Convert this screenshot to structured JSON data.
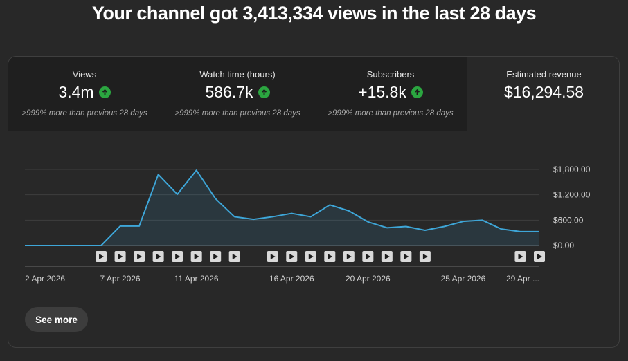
{
  "headline": "Your channel got 3,413,334 views in the last 28 days",
  "metrics": [
    {
      "label": "Views",
      "value": "3.4m",
      "compare": ">999% more than previous 28 days",
      "trend_icon": "arrow-up-circle-icon"
    },
    {
      "label": "Watch time (hours)",
      "value": "586.7k",
      "compare": ">999% more than previous 28 days",
      "trend_icon": "arrow-up-circle-icon"
    },
    {
      "label": "Subscribers",
      "value": "+15.8k",
      "compare": ">999% more than previous 28 days",
      "trend_icon": "arrow-up-circle-icon"
    },
    {
      "label": "Estimated revenue",
      "value": "$16,294.58",
      "selected": true
    }
  ],
  "colors": {
    "line": "#3ea6d8",
    "up": "#2ba640",
    "background": "#282828",
    "tile": "#1f1f1f"
  },
  "chart_data": {
    "type": "area",
    "series": [
      {
        "values": [
          0,
          0,
          0,
          0,
          0,
          460,
          460,
          1680,
          1210,
          1780,
          1110,
          680,
          620,
          680,
          760,
          680,
          960,
          820,
          560,
          420,
          450,
          360,
          450,
          570,
          600,
          390,
          330,
          330
        ]
      }
    ],
    "x": [
      "2 Apr 2026",
      "3 Apr 2026",
      "4 Apr 2026",
      "5 Apr 2026",
      "6 Apr 2026",
      "7 Apr 2026",
      "8 Apr 2026",
      "9 Apr 2026",
      "10 Apr 2026",
      "11 Apr 2026",
      "12 Apr 2026",
      "13 Apr 2026",
      "14 Apr 2026",
      "15 Apr 2026",
      "16 Apr 2026",
      "17 Apr 2026",
      "18 Apr 2026",
      "19 Apr 2026",
      "20 Apr 2026",
      "21 Apr 2026",
      "22 Apr 2026",
      "23 Apr 2026",
      "24 Apr 2026",
      "25 Apr 2026",
      "26 Apr 2026",
      "27 Apr 2026",
      "28 Apr 2026",
      "29 Apr 2026"
    ],
    "x_tick_labels": [
      {
        "index": 0,
        "label": "2 Apr 2026"
      },
      {
        "index": 5,
        "label": "7 Apr 2026"
      },
      {
        "index": 9,
        "label": "11 Apr 2026"
      },
      {
        "index": 14,
        "label": "16 Apr 2026"
      },
      {
        "index": 18,
        "label": "20 Apr 2026"
      },
      {
        "index": 23,
        "label": "25 Apr 2026"
      },
      {
        "index": 27,
        "label": "29 Apr ..."
      }
    ],
    "y_ticks": [
      0,
      600,
      1200,
      1800
    ],
    "y_tick_labels": [
      "$0.00",
      "$600.00",
      "$1,200.00",
      "$1,800.00"
    ],
    "ylim": [
      0,
      1800
    ],
    "grid": true,
    "y_axis_side": "right",
    "video_markers": [
      4,
      5,
      6,
      7,
      8,
      9,
      10,
      11,
      13,
      14,
      15,
      16,
      17,
      18,
      19,
      20,
      21,
      26,
      27
    ]
  },
  "see_more": "See more"
}
